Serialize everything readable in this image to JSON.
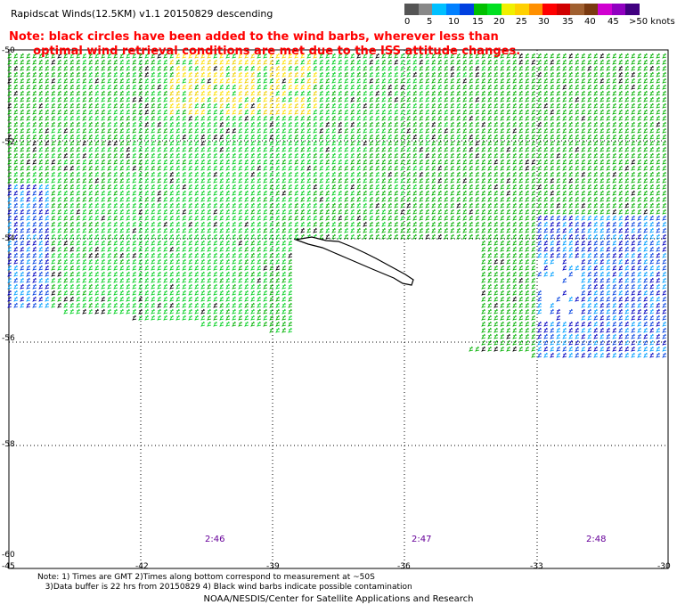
{
  "title": "Rapidscat Winds(12.5KM) v1.1 20150829 descending",
  "note_line1": "Note: black circles have been added to the wind barbs, wherever less than",
  "note_line2": "      optimal wind retrieval conditions are met due to the ISS attitude changes.",
  "scale": {
    "labels": [
      "0",
      "5",
      "10",
      "15",
      "20",
      "25",
      "30",
      "35",
      "40",
      "45",
      ">50 knots"
    ],
    "colors": [
      "#555555",
      "#888888",
      "#00c0ff",
      "#0080ff",
      "#0040e0",
      "#00c000",
      "#00e020",
      "#f0f000",
      "#ffd000",
      "#ff9000",
      "#ff0000",
      "#d00000",
      "#a06030",
      "#7a3a10",
      "#d000d0",
      "#9000c0",
      "#400080"
    ]
  },
  "axes": {
    "lat_labels": [
      "-50",
      "-52",
      "-54",
      "-56",
      "-58",
      "-60"
    ],
    "lon_labels": [
      "-45",
      "-42",
      "-39",
      "-36",
      "-33",
      "-30"
    ]
  },
  "times": [
    "2:46",
    "2:47",
    "2:48"
  ],
  "footnote_line1": "Note: 1) Times are GMT 2)Times along bottom correspond to measurement at ~50S",
  "footnote_line2": "   3)Data buffer is 22 hrs from 20150829 4) Black wind barbs indicate possible contamination",
  "credit": "NOAA/NESDIS/Center for Satellite Applications and Research"
}
